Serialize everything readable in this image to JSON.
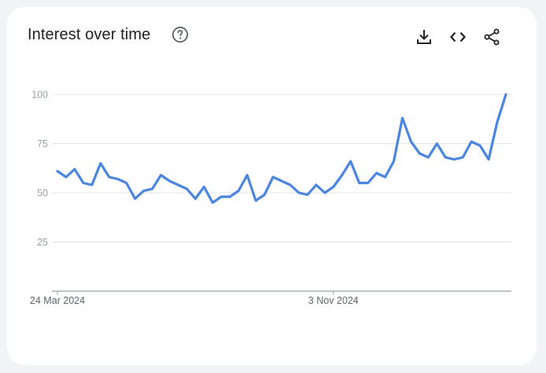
{
  "header": {
    "title": "Interest over time"
  },
  "icons": {
    "help": "help-circle-icon",
    "download": "download-icon",
    "embed": "code-icon",
    "share": "share-icon"
  },
  "colors": {
    "line": "#4a86e0",
    "grid": "#e6e6e6",
    "axis": "#9aa0a6",
    "tick_text": "#9aa0a6",
    "icon": "#202124"
  },
  "chart_data": {
    "type": "line",
    "title": "Interest over time",
    "xlabel": "",
    "ylabel": "",
    "ylim": [
      0,
      100
    ],
    "y_ticks": [
      25,
      50,
      75,
      100
    ],
    "x_tick_labels": [
      "24 Mar 2024",
      "3 Nov 2024"
    ],
    "x_tick_index": [
      0,
      32
    ],
    "grid": true,
    "legend": "none",
    "series": [
      {
        "values": [
          61,
          58,
          62,
          55,
          54,
          65,
          58,
          57,
          55,
          47,
          51,
          52,
          59,
          56,
          54,
          52,
          47,
          53,
          45,
          48,
          48,
          51,
          59,
          46,
          49,
          58,
          56,
          54,
          50,
          49,
          54,
          50,
          53,
          59,
          66,
          55,
          55,
          60,
          58,
          66,
          88,
          76,
          70,
          68,
          75,
          68,
          67,
          68,
          76,
          74,
          67,
          86,
          100
        ]
      }
    ]
  }
}
